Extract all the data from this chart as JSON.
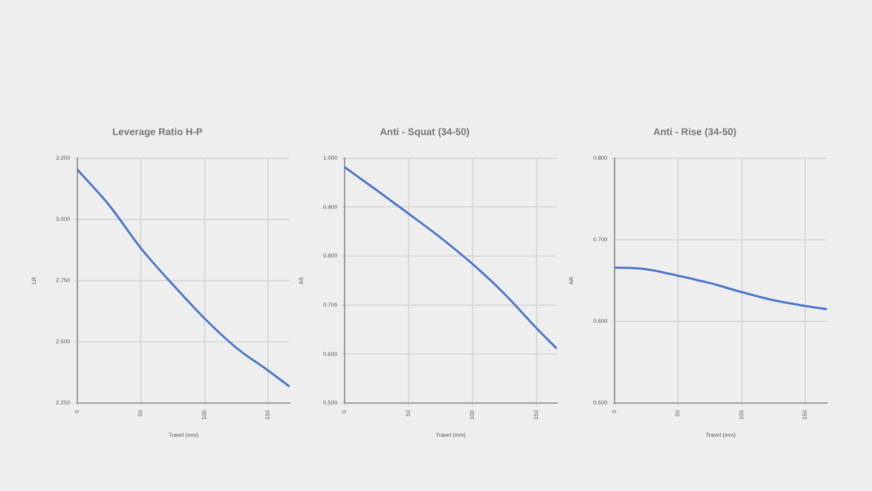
{
  "chart_data": [
    {
      "type": "line",
      "title": "Leverage Ratio H-P",
      "xlabel": "Travel (mm)",
      "ylabel": "LR",
      "x": [
        0,
        25,
        50,
        75,
        100,
        125,
        150,
        167
      ],
      "series": [
        {
          "color": "#4a74c9",
          "values": [
            3.204,
            3.059,
            2.883,
            2.735,
            2.596,
            2.476,
            2.383,
            2.317
          ]
        }
      ],
      "xlim": [
        0,
        167
      ],
      "xticks": [
        0,
        50,
        100,
        150
      ],
      "ylim": [
        2.25,
        3.25
      ],
      "yticks": [
        {
          "value": 2.25,
          "label": "2.250"
        },
        {
          "value": 2.5,
          "label": "2.500"
        },
        {
          "value": 2.75,
          "label": "2.750"
        },
        {
          "value": 3,
          "label": "3.000"
        },
        {
          "value": 3.25,
          "label": "3.250"
        }
      ],
      "grid": true,
      "legend": false,
      "marker": "none",
      "line_style": "solid"
    },
    {
      "type": "line",
      "title": "Anti - Squat (34-50)",
      "xlabel": "Travel (mm)",
      "ylabel": "AS",
      "x": [
        0,
        25,
        50,
        75,
        100,
        125,
        150,
        166
      ],
      "series": [
        {
          "color": "#4a74c9",
          "values": [
            0.982,
            0.935,
            0.887,
            0.838,
            0.784,
            0.723,
            0.653,
            0.611
          ]
        }
      ],
      "xlim": [
        0,
        166
      ],
      "xticks": [
        0,
        50,
        100,
        150
      ],
      "ylim": [
        0.5,
        1
      ],
      "yticks": [
        {
          "value": 0.5,
          "label": "0.500"
        },
        {
          "value": 0.6,
          "label": "0.600"
        },
        {
          "value": 0.7,
          "label": "0.700"
        },
        {
          "value": 0.8,
          "label": "0.800"
        },
        {
          "value": 0.9,
          "label": "0.900"
        },
        {
          "value": 1,
          "label": "1.000"
        }
      ],
      "grid": true,
      "legend": false,
      "marker": "none",
      "line_style": "solid"
    },
    {
      "type": "line",
      "title": "Anti - Rise (34-50)",
      "xlabel": "Travel (mm)",
      "ylabel": "AR",
      "x": [
        0,
        25,
        50,
        75,
        100,
        125,
        150,
        167
      ],
      "series": [
        {
          "color": "#4a74c9",
          "values": [
            0.666,
            0.664,
            0.656,
            0.647,
            0.636,
            0.626,
            0.619,
            0.615
          ]
        }
      ],
      "xlim": [
        0,
        167
      ],
      "xticks": [
        0,
        50,
        100,
        150
      ],
      "ylim": [
        0.5,
        0.8
      ],
      "yticks": [
        {
          "value": 0.5,
          "label": "0.500"
        },
        {
          "value": 0.6,
          "label": "0.600"
        },
        {
          "value": 0.7,
          "label": "0.700"
        },
        {
          "value": 0.8,
          "label": "0.800"
        }
      ],
      "grid": true,
      "legend": false,
      "marker": "none",
      "line_style": "solid"
    }
  ]
}
